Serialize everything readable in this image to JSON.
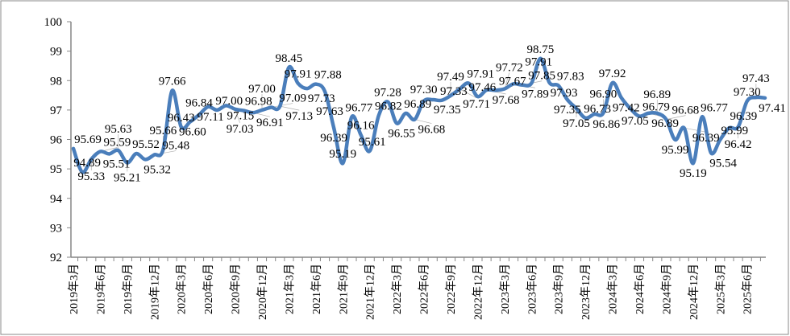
{
  "chart_data": {
    "type": "line",
    "title": "",
    "xlabel": "",
    "ylabel": "",
    "ylim": [
      92,
      100
    ],
    "y_ticks": [
      92,
      93,
      94,
      95,
      96,
      97,
      98,
      99,
      100
    ],
    "grid": false,
    "legend": "none",
    "line_color": "#4a7ebb",
    "x_start_month": "2019年3月",
    "x_tick_every": 3,
    "x_tick_labels": [
      "2019年3月",
      "2019年6月",
      "2019年9月",
      "2019年12月",
      "2020年3月",
      "2020年6月",
      "2020年9月",
      "2020年12月",
      "2021年3月",
      "2021年6月",
      "2021年9月",
      "2021年12月",
      "2022年3月",
      "2022年6月",
      "2022年9月",
      "2022年12月",
      "2023年3月",
      "2023年6月",
      "2023年9月",
      "2023年12月",
      "2024年3月",
      "2024年6月",
      "2024年9月",
      "2024年12月",
      "2025年3月",
      "2025年6月"
    ],
    "series": [
      {
        "name": "",
        "values": [
          95.69,
          94.89,
          95.33,
          95.59,
          95.51,
          95.63,
          95.21,
          95.52,
          95.32,
          95.48,
          95.66,
          97.66,
          96.43,
          96.6,
          96.84,
          97.11,
          97.0,
          97.15,
          97.03,
          96.98,
          96.91,
          97.0,
          97.09,
          97.13,
          98.45,
          97.91,
          97.73,
          97.88,
          97.63,
          96.39,
          95.19,
          96.77,
          96.16,
          95.61,
          96.82,
          97.28,
          96.55,
          96.89,
          96.68,
          97.3,
          97.35,
          97.33,
          97.49,
          97.71,
          97.91,
          97.46,
          97.68,
          97.67,
          97.72,
          97.89,
          97.85,
          97.91,
          98.75,
          97.93,
          97.83,
          97.35,
          97.05,
          96.73,
          96.86,
          96.9,
          97.92,
          97.42,
          97.05,
          96.79,
          96.89,
          96.89,
          96.68,
          95.99,
          96.39,
          95.19,
          96.77,
          95.54,
          95.99,
          96.39,
          96.42,
          97.3,
          97.43,
          97.41
        ]
      }
    ]
  }
}
